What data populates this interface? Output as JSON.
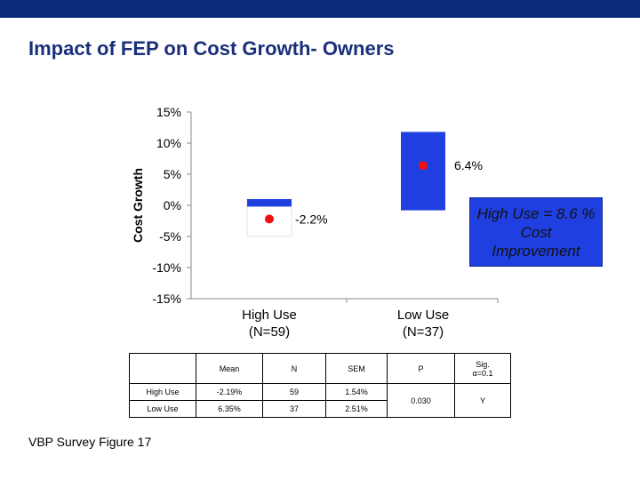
{
  "header": {
    "title": "Impact of FEP on Cost Growth- Owners"
  },
  "colors": {
    "bar": "#1f3fe0",
    "dot": "#ee1111",
    "topbar": "#0a2a7a",
    "title": "#1a2f7a"
  },
  "chart_data": {
    "type": "scatter",
    "ylabel": "Cost Growth",
    "yticks": [
      "15%",
      "10%",
      "5%",
      "0%",
      "-5%",
      "-10%",
      "-15%"
    ],
    "ytick_values": [
      15,
      10,
      5,
      0,
      -5,
      -10,
      -15
    ],
    "ylim": [
      -15,
      15
    ],
    "categories": [
      "High Use\n(N=59)",
      "Low Use\n(N=37)"
    ],
    "category_lines": [
      [
        "High Use",
        "(N=59)"
      ],
      [
        "Low Use",
        "(N=37)"
      ]
    ],
    "means": [
      -2.2,
      6.4
    ],
    "mean_labels": [
      "-2.2%",
      "6.4%"
    ],
    "bands": [
      {
        "low": -0.2,
        "high": 1.0
      },
      {
        "low": -0.8,
        "high": 11.8
      }
    ],
    "annotation": [
      "High Use = 8.6 %",
      "Cost",
      "Improvement"
    ]
  },
  "table": {
    "headers": [
      "Mean",
      "N",
      "SEM",
      "P",
      "Sig.\nα=0.1"
    ],
    "sig_header": [
      "Sig.",
      "α=0.1"
    ],
    "rows": [
      {
        "label": "High Use",
        "mean": "-2.19%",
        "n": "59",
        "sem": "1.54%"
      },
      {
        "label": "Low Use",
        "mean": "6.35%",
        "n": "37",
        "sem": "2.51%"
      }
    ],
    "p": "0.030",
    "sig": "Y"
  },
  "footer": {
    "caption": "VBP Survey Figure 17"
  }
}
